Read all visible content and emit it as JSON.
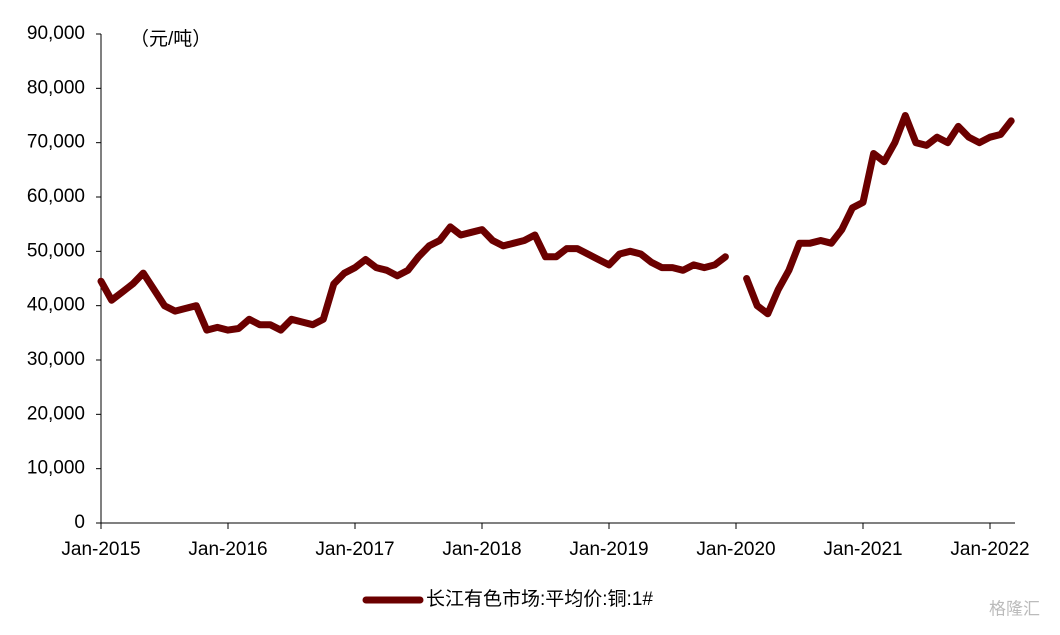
{
  "chart_data": {
    "type": "line",
    "unit_label": "（元/吨）",
    "watermark": "格隆汇",
    "categories": [
      "Jan-2015",
      null,
      null,
      null,
      null,
      null,
      null,
      null,
      null,
      null,
      null,
      null,
      "Jan-2016",
      null,
      null,
      null,
      null,
      null,
      null,
      null,
      null,
      null,
      null,
      null,
      "Jan-2017",
      null,
      null,
      null,
      null,
      null,
      null,
      null,
      null,
      null,
      null,
      null,
      "Jan-2018",
      null,
      null,
      null,
      null,
      null,
      null,
      null,
      null,
      null,
      null,
      null,
      "Jan-2019",
      null,
      null,
      null,
      null,
      null,
      null,
      null,
      null,
      null,
      null,
      null,
      "Jan-2020",
      null,
      null,
      null,
      null,
      null,
      null,
      null,
      null,
      null,
      null,
      null,
      "Jan-2021",
      null,
      null,
      null,
      null,
      null,
      null,
      null,
      null,
      null,
      null,
      null,
      "Jan-2022",
      null,
      null
    ],
    "series": [
      {
        "name": "长江有色市场:平均价:铜:1#",
        "color": "#6b0000",
        "values": [
          44500,
          41000,
          42500,
          44000,
          46000,
          43000,
          40000,
          39000,
          39500,
          40000,
          35500,
          36000,
          35500,
          35800,
          37500,
          36500,
          36500,
          35500,
          37500,
          37000,
          36500,
          37500,
          44000,
          46000,
          47000,
          48500,
          47000,
          46500,
          45500,
          46500,
          49000,
          51000,
          52000,
          54500,
          53000,
          53500,
          54000,
          52000,
          51000,
          51500,
          52000,
          53000,
          49000,
          49000,
          50500,
          50500,
          49500,
          48500,
          47500,
          49500,
          50000,
          49500,
          48000,
          47000,
          47000,
          46500,
          47500,
          47000,
          47500,
          49000,
          null,
          45000,
          40000,
          38500,
          43000,
          46500,
          51500,
          51500,
          52000,
          51500,
          54000,
          58000,
          59000,
          68000,
          66500,
          70000,
          75000,
          70000,
          69500,
          71000,
          70000,
          73000,
          71000,
          70000,
          71000,
          71500,
          74000
        ]
      }
    ],
    "ylim": [
      0,
      90000
    ],
    "yticks": [
      0,
      {
        "value": 10000,
        "label": "10,000"
      },
      {
        "value": 20000,
        "label": "20,000"
      },
      {
        "value": 30000,
        "label": "30,000"
      },
      {
        "value": 40000,
        "label": "40,000"
      },
      {
        "value": 50000,
        "label": "50,000"
      },
      {
        "value": 60000,
        "label": "60,000"
      },
      {
        "value": 70000,
        "label": "70,000"
      },
      {
        "value": 80000,
        "label": "80,000"
      },
      {
        "value": 90000,
        "label": "90,000"
      }
    ],
    "grid": false
  }
}
